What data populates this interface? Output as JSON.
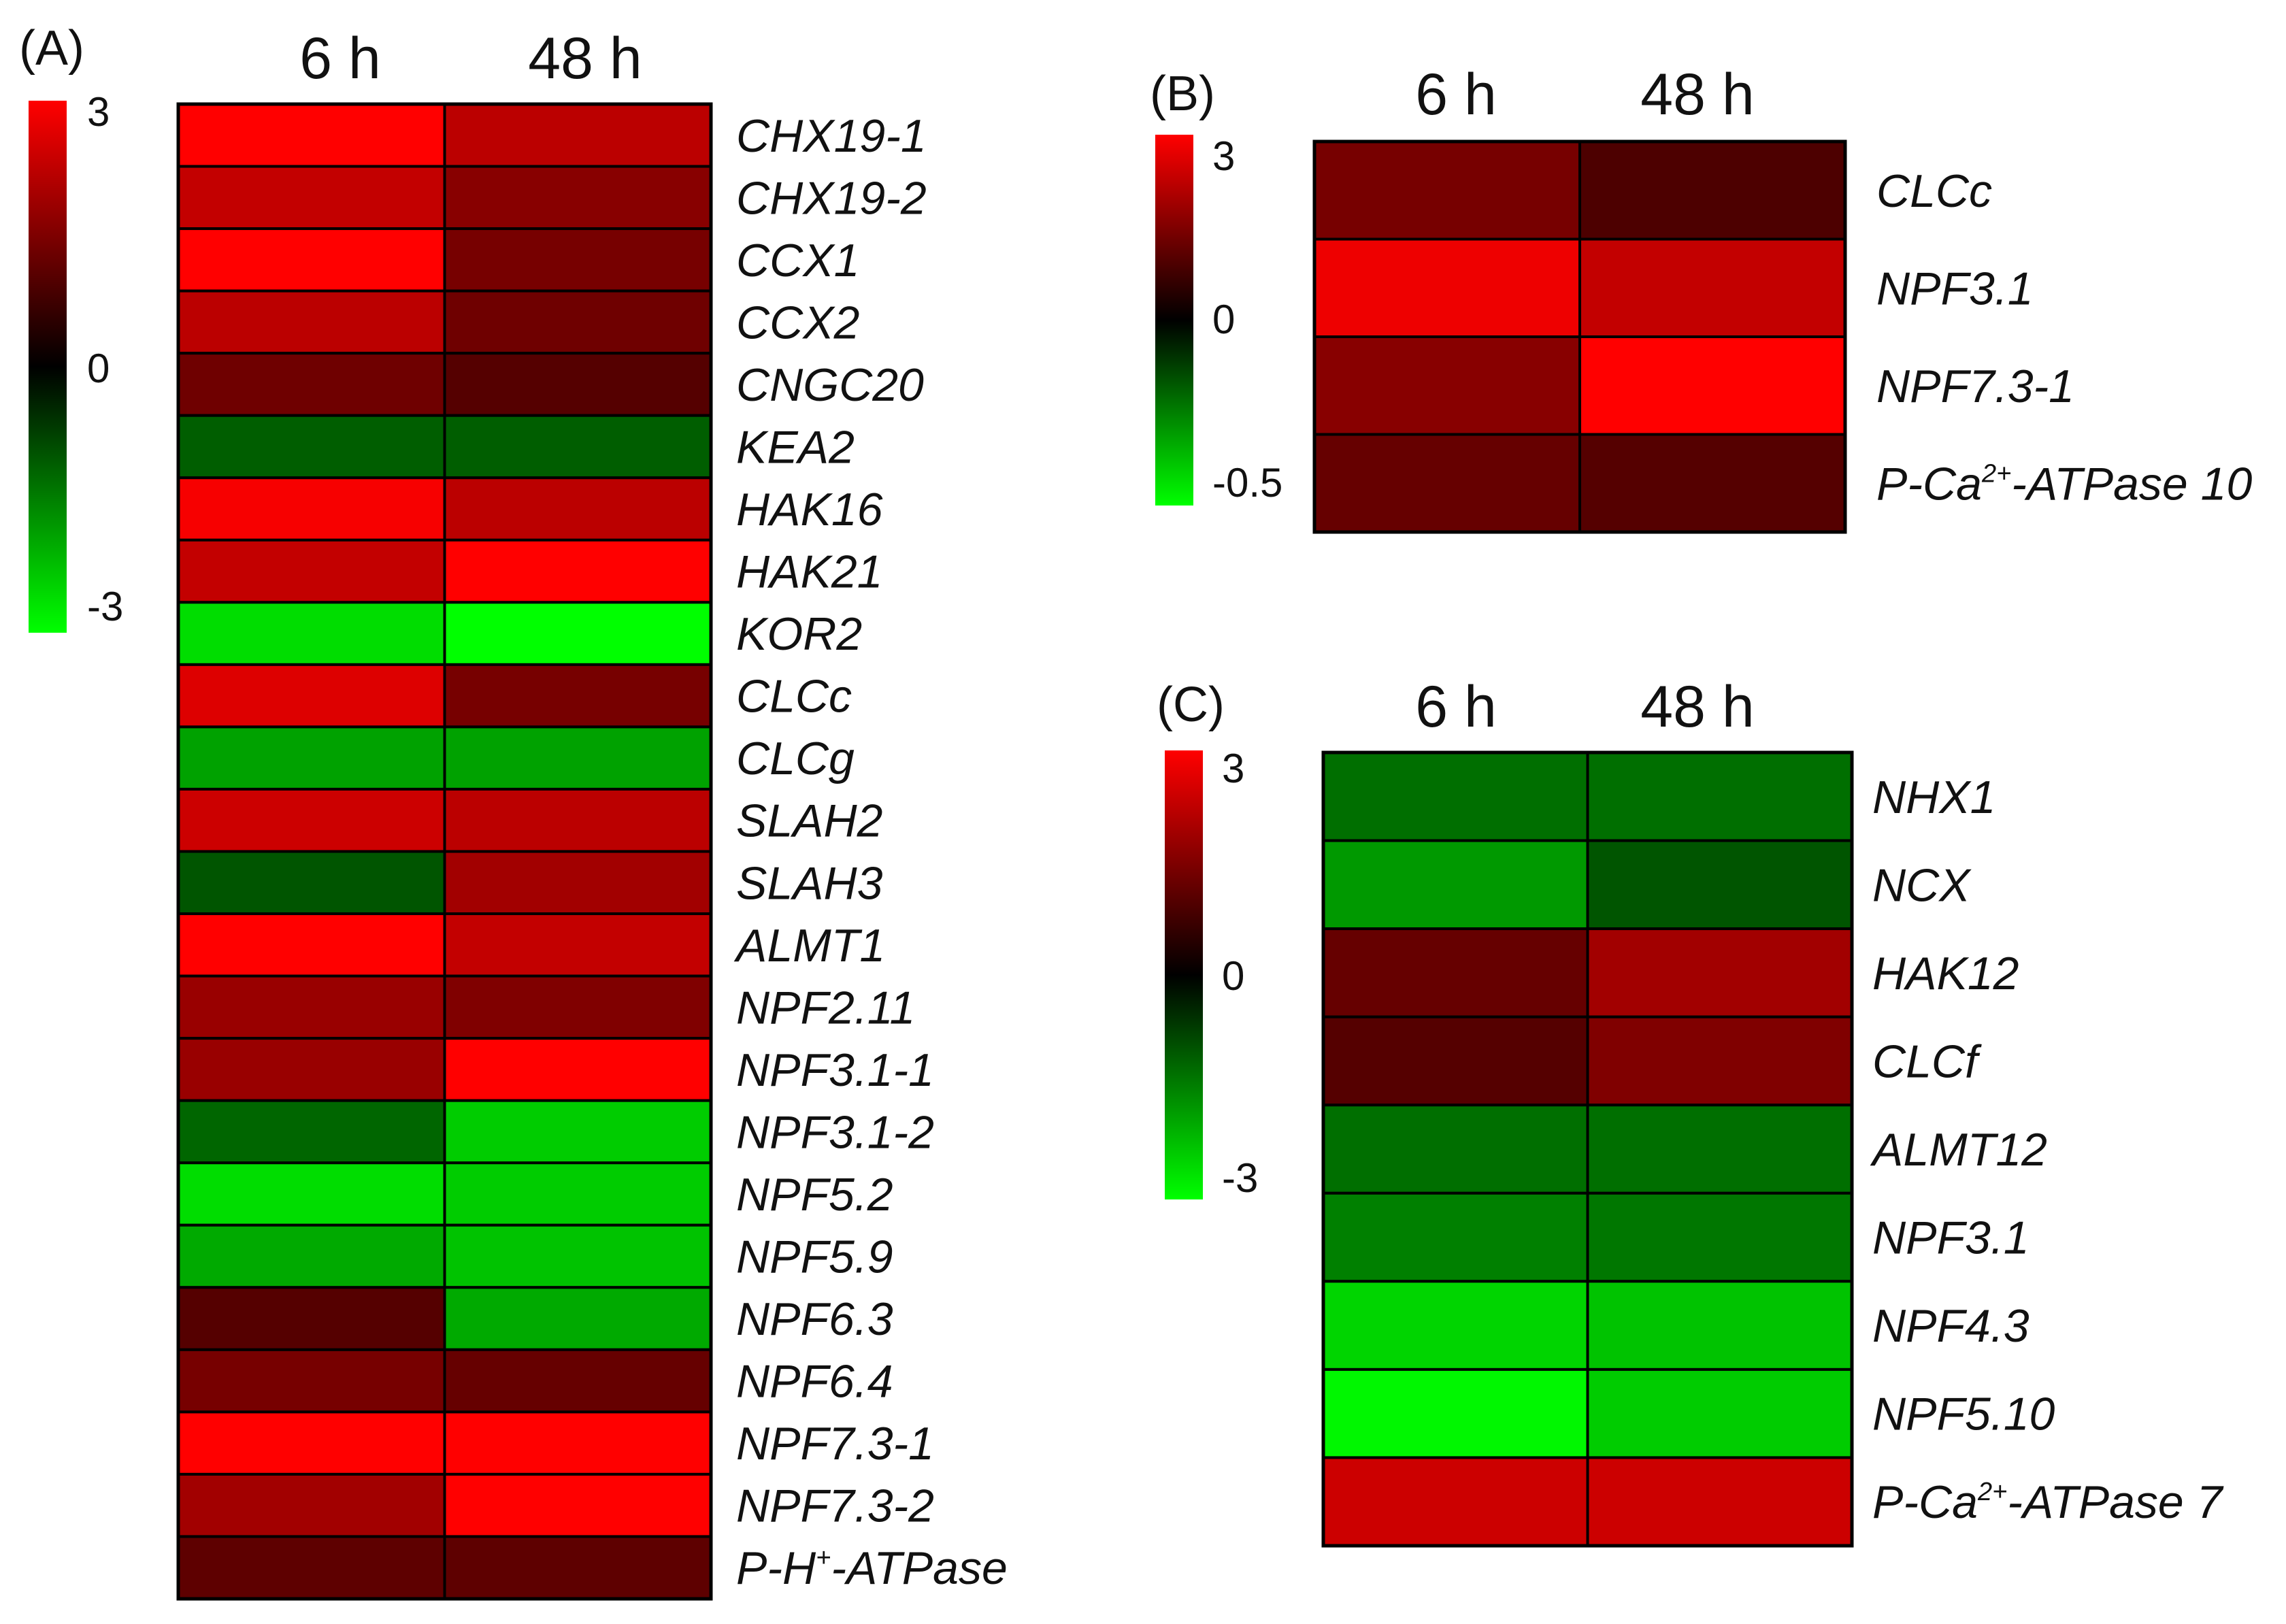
{
  "chart_data": [
    {
      "type": "heatmap",
      "panel": "(A)",
      "columns": [
        "6 h",
        "48 h"
      ],
      "colorbar": {
        "max": 3,
        "mid": 0,
        "min": -3,
        "ticks": [
          "3",
          "0",
          "-3"
        ]
      },
      "rows": [
        {
          "gene": "CHX19-1",
          "values": [
            3.0,
            2.2
          ]
        },
        {
          "gene": "CHX19-2",
          "values": [
            2.3,
            1.6
          ]
        },
        {
          "gene": "CCX1",
          "values": [
            3.0,
            1.4
          ]
        },
        {
          "gene": "CCX2",
          "values": [
            2.2,
            1.3
          ]
        },
        {
          "gene": "CNGC20",
          "values": [
            1.3,
            1.0
          ]
        },
        {
          "gene": "KEA2",
          "values": [
            -1.1,
            -1.1
          ]
        },
        {
          "gene": "HAK16",
          "values": [
            2.9,
            2.2
          ]
        },
        {
          "gene": "HAK21",
          "values": [
            2.3,
            3.0
          ]
        },
        {
          "gene": "KOR2",
          "values": [
            -2.6,
            -3.0
          ]
        },
        {
          "gene": "CLCc",
          "values": [
            2.6,
            1.4
          ]
        },
        {
          "gene": "CLCg",
          "values": [
            -1.9,
            -1.9
          ]
        },
        {
          "gene": "SLAH2",
          "values": [
            2.4,
            2.2
          ]
        },
        {
          "gene": "SLAH3",
          "values": [
            -1.0,
            1.9
          ]
        },
        {
          "gene": "ALMT1",
          "values": [
            3.0,
            2.3
          ]
        },
        {
          "gene": "NPF2.11",
          "values": [
            1.8,
            1.5
          ]
        },
        {
          "gene": "NPF3.1-1",
          "values": [
            1.8,
            3.0
          ]
        },
        {
          "gene": "NPF3.1-2",
          "values": [
            -1.2,
            -2.4
          ]
        },
        {
          "gene": "NPF5.2",
          "values": [
            -2.6,
            -2.4
          ]
        },
        {
          "gene": "NPF5.9",
          "values": [
            -2.0,
            -2.3
          ]
        },
        {
          "gene": "NPF6.3",
          "values": [
            1.0,
            -2.0
          ]
        },
        {
          "gene": "NPF6.4",
          "values": [
            1.4,
            1.2
          ]
        },
        {
          "gene": "NPF7.3-1",
          "values": [
            3.0,
            3.0
          ]
        },
        {
          "gene": "NPF7.3-2",
          "values": [
            1.9,
            3.0
          ]
        },
        {
          "gene": "P-H",
          "sup": "+",
          "suffix": "-ATPase",
          "values": [
            1.1,
            1.1
          ]
        }
      ]
    },
    {
      "type": "heatmap",
      "panel": "(B)",
      "columns": [
        "6 h",
        "48 h"
      ],
      "colorbar": {
        "max": 3,
        "mid": 0,
        "min": -0.5,
        "ticks": [
          "3",
          "0",
          "-0.5"
        ]
      },
      "rows": [
        {
          "gene": "CLCc",
          "values": [
            1.4,
            0.9
          ]
        },
        {
          "gene": "NPF3.1",
          "values": [
            2.8,
            2.3
          ]
        },
        {
          "gene": "NPF7.3-1",
          "values": [
            1.6,
            3.0
          ]
        },
        {
          "gene": "P-Ca",
          "sup": "2+",
          "suffix": "-ATPase 10",
          "values": [
            1.2,
            1.0
          ]
        }
      ]
    },
    {
      "type": "heatmap",
      "panel": "(C)",
      "columns": [
        "6 h",
        "48 h"
      ],
      "colorbar": {
        "max": 3,
        "mid": 0,
        "min": -3,
        "ticks": [
          "3",
          "0",
          "-3"
        ]
      },
      "rows": [
        {
          "gene": "NHX1",
          "values": [
            -1.3,
            -1.3
          ]
        },
        {
          "gene": "NCX",
          "values": [
            -1.8,
            -1.0
          ]
        },
        {
          "gene": "HAK12",
          "values": [
            1.2,
            1.9
          ]
        },
        {
          "gene": "CLCf",
          "values": [
            1.0,
            1.5
          ]
        },
        {
          "gene": "ALMT12",
          "values": [
            -1.3,
            -1.3
          ]
        },
        {
          "gene": "NPF3.1",
          "values": [
            -1.5,
            -1.4
          ]
        },
        {
          "gene": "NPF4.3",
          "values": [
            -2.5,
            -2.3
          ]
        },
        {
          "gene": "NPF5.10",
          "values": [
            -2.9,
            -2.4
          ]
        },
        {
          "gene": "P-Ca",
          "sup": "2+",
          "suffix": "-ATPase 7",
          "values": [
            2.4,
            2.4
          ]
        }
      ]
    }
  ],
  "colors": {
    "high": "#ff0000",
    "mid": "#000000",
    "low": "#00ff00"
  }
}
